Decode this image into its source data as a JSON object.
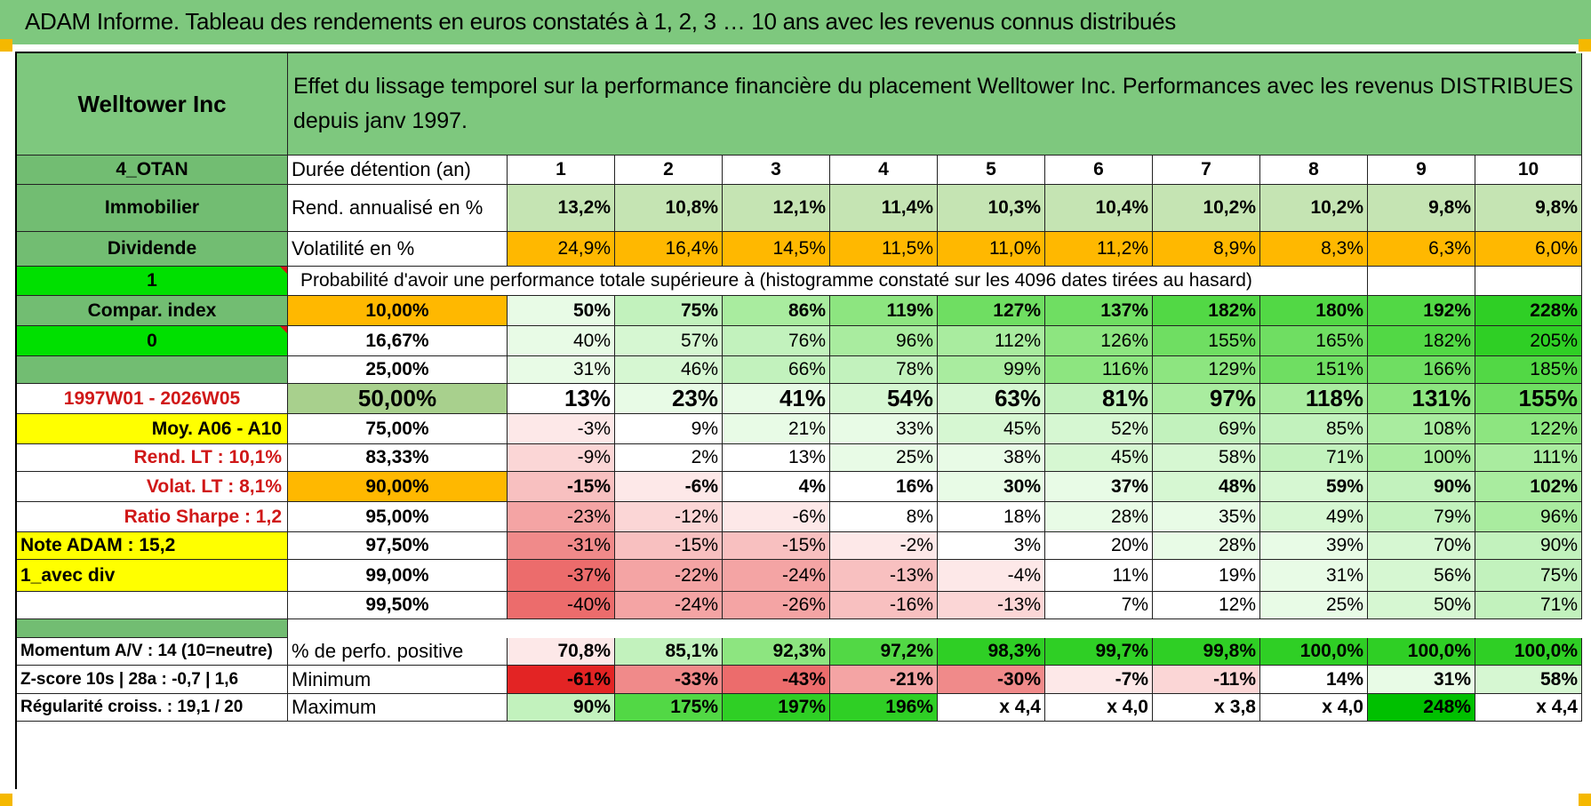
{
  "title": "ADAM Informe. Tableau des rendements en euros constatés à 1, 2, 3 … 10 ans avec les revenus connus distribués",
  "colors": {
    "header_green": "#7ec87e",
    "label_green": "#72bd72",
    "bright_green": "#00e000",
    "yellow": "#ffff00",
    "orange": "#ffb800",
    "pale_green": "#c5e4b3",
    "median_green": "#a8d08d",
    "red_text": "#d01818"
  },
  "header": {
    "name": "Welltower Inc",
    "description": "Effet du lissage temporel sur la performance financière du placement Welltower Inc. Performances avec les revenus DISTRIBUES depuis janv 1997."
  },
  "rows": [
    {
      "label": "4_OTAN",
      "label_style": "lg",
      "metric": "Durée détention (an)",
      "metric_style": "w",
      "cells": [
        "1",
        "2",
        "3",
        "4",
        "5",
        "6",
        "7",
        "8",
        "9",
        "10"
      ],
      "cell_style": "years"
    },
    {
      "label": "Immobilier",
      "label_style": "lg",
      "metric": "Rend. annualisé en %",
      "metric_style": "w",
      "cells": [
        "13,2%",
        "10,8%",
        "12,1%",
        "11,4%",
        "10,3%",
        "10,4%",
        "10,2%",
        "10,2%",
        "9,8%",
        "9,8%"
      ],
      "cell_style": "rend"
    },
    {
      "label": "Dividende",
      "label_style": "lg",
      "metric": "Volatilité en %",
      "metric_style": "w",
      "cells": [
        "24,9%",
        "16,4%",
        "14,5%",
        "11,5%",
        "11,0%",
        "11,2%",
        "8,9%",
        "8,3%",
        "6,3%",
        "6,0%"
      ],
      "cell_style": "vol"
    },
    {
      "label": "1",
      "label_style": "bg-tri",
      "banner": "Probabilité d'avoir une performance totale supérieure à (histogramme constaté sur les 4096 dates tirées au hasard)"
    },
    {
      "label": "Compar. index",
      "label_style": "lg",
      "threshold": "10,00%",
      "threshold_style": "orange",
      "cells": [
        "50%",
        "75%",
        "86%",
        "119%",
        "127%",
        "137%",
        "182%",
        "180%",
        "192%",
        "228%"
      ],
      "bold": true,
      "levels": [
        1,
        3,
        4,
        5,
        6,
        6,
        7,
        7,
        7,
        8
      ]
    },
    {
      "label": "0",
      "label_style": "bg-tri",
      "threshold": "16,67%",
      "threshold_style": "w",
      "cells": [
        "40%",
        "57%",
        "76%",
        "96%",
        "112%",
        "126%",
        "155%",
        "165%",
        "182%",
        "205%"
      ],
      "levels": [
        1,
        2,
        3,
        4,
        4,
        5,
        6,
        6,
        7,
        8
      ]
    },
    {
      "label": "",
      "label_style": "lg",
      "threshold": "25,00%",
      "threshold_style": "w",
      "cells": [
        "31%",
        "46%",
        "66%",
        "78%",
        "99%",
        "116%",
        "129%",
        "151%",
        "166%",
        "185%"
      ],
      "levels": [
        1,
        2,
        3,
        3,
        4,
        5,
        5,
        6,
        6,
        7
      ]
    },
    {
      "label": "1997W01 - 2026W05",
      "label_style": "red-ctr",
      "threshold": "50,00%",
      "threshold_style": "median",
      "cells": [
        "13%",
        "23%",
        "41%",
        "54%",
        "63%",
        "81%",
        "97%",
        "118%",
        "131%",
        "155%"
      ],
      "big": true,
      "levels": [
        0,
        1,
        1,
        2,
        2,
        3,
        4,
        4,
        5,
        6
      ]
    },
    {
      "label": "Moy. A06 - A10",
      "label_style": "yellow-right",
      "threshold": "75,00%",
      "threshold_style": "w",
      "cells": [
        "-3%",
        "9%",
        "21%",
        "33%",
        "45%",
        "52%",
        "69%",
        "85%",
        "108%",
        "122%"
      ],
      "levels": [
        -1,
        0,
        1,
        1,
        2,
        2,
        3,
        3,
        4,
        5
      ]
    },
    {
      "label": "Rend. LT :    10,1%",
      "label_style": "red-right",
      "threshold": "83,33%",
      "threshold_style": "w",
      "cells": [
        "-9%",
        "2%",
        "13%",
        "25%",
        "38%",
        "45%",
        "58%",
        "71%",
        "100%",
        "111%"
      ],
      "levels": [
        -2,
        0,
        0,
        1,
        1,
        2,
        2,
        3,
        4,
        4
      ]
    },
    {
      "label": "Volat. LT :    8,1%",
      "label_style": "red-right",
      "threshold": "90,00%",
      "threshold_style": "orange",
      "cells": [
        "-15%",
        "-6%",
        "4%",
        "16%",
        "30%",
        "37%",
        "48%",
        "59%",
        "90%",
        "102%"
      ],
      "bold": true,
      "levels": [
        -3,
        -1,
        0,
        0,
        1,
        1,
        2,
        2,
        3,
        4
      ]
    },
    {
      "label": "Ratio Sharpe :    1,2",
      "label_style": "red-right",
      "threshold": "95,00%",
      "threshold_style": "w",
      "cells": [
        "-23%",
        "-12%",
        "-6%",
        "8%",
        "18%",
        "28%",
        "35%",
        "49%",
        "79%",
        "96%"
      ],
      "levels": [
        -4,
        -2,
        -1,
        0,
        0,
        1,
        1,
        2,
        3,
        4
      ]
    },
    {
      "label": "Note ADAM : 15,2",
      "label_style": "yellow-left",
      "threshold": "97,50%",
      "threshold_style": "w",
      "cells": [
        "-31%",
        "-15%",
        "-15%",
        "-2%",
        "3%",
        "20%",
        "28%",
        "39%",
        "70%",
        "90%"
      ],
      "levels": [
        -5,
        -3,
        -3,
        -1,
        0,
        0,
        1,
        1,
        2,
        3
      ]
    },
    {
      "label": "1_avec div",
      "label_style": "yellow-left",
      "threshold": "99,00%",
      "threshold_style": "w",
      "cells": [
        "-37%",
        "-22%",
        "-24%",
        "-13%",
        "-4%",
        "11%",
        "19%",
        "31%",
        "56%",
        "75%"
      ],
      "levels": [
        -6,
        -4,
        -4,
        -3,
        -1,
        0,
        0,
        1,
        2,
        3
      ]
    },
    {
      "label": "",
      "label_style": "w",
      "threshold": "99,50%",
      "threshold_style": "w",
      "cells": [
        "-40%",
        "-24%",
        "-26%",
        "-16%",
        "-13%",
        "7%",
        "12%",
        "25%",
        "50%",
        "71%"
      ],
      "levels": [
        -6,
        -4,
        -4,
        -3,
        -2,
        0,
        0,
        1,
        2,
        3
      ]
    }
  ],
  "summary": [
    {
      "label": "Momentum A/V : 14 (10=neutre)",
      "metric": "% de perfo. positive",
      "cells": [
        "70,8%",
        "85,1%",
        "92,3%",
        "97,2%",
        "98,3%",
        "99,7%",
        "99,8%",
        "100,0%",
        "100,0%",
        "100,0%"
      ],
      "levels": [
        -1,
        3,
        5,
        7,
        8,
        8,
        8,
        8,
        8,
        8
      ]
    },
    {
      "label": "Z-score 10s | 28a : -0,7 | 1,6",
      "metric": "Minimum",
      "cells": [
        "-61%",
        "-33%",
        "-43%",
        "-21%",
        "-30%",
        "-7%",
        "-11%",
        "14%",
        "31%",
        "58%"
      ],
      "levels": [
        -8,
        -5,
        -6,
        -4,
        -5,
        -1,
        -2,
        0,
        1,
        2
      ]
    },
    {
      "label": "Régularité croiss. : 19,1 / 20",
      "metric": "Maximum",
      "cells": [
        "90%",
        "175%",
        "197%",
        "196%",
        "x 4,4",
        "x 4,0",
        "x 3,8",
        "x 4,0",
        "248%",
        "x 4,4"
      ],
      "levels": [
        3,
        7,
        8,
        8,
        -99,
        -99,
        -99,
        -99,
        9,
        -99
      ]
    }
  ]
}
